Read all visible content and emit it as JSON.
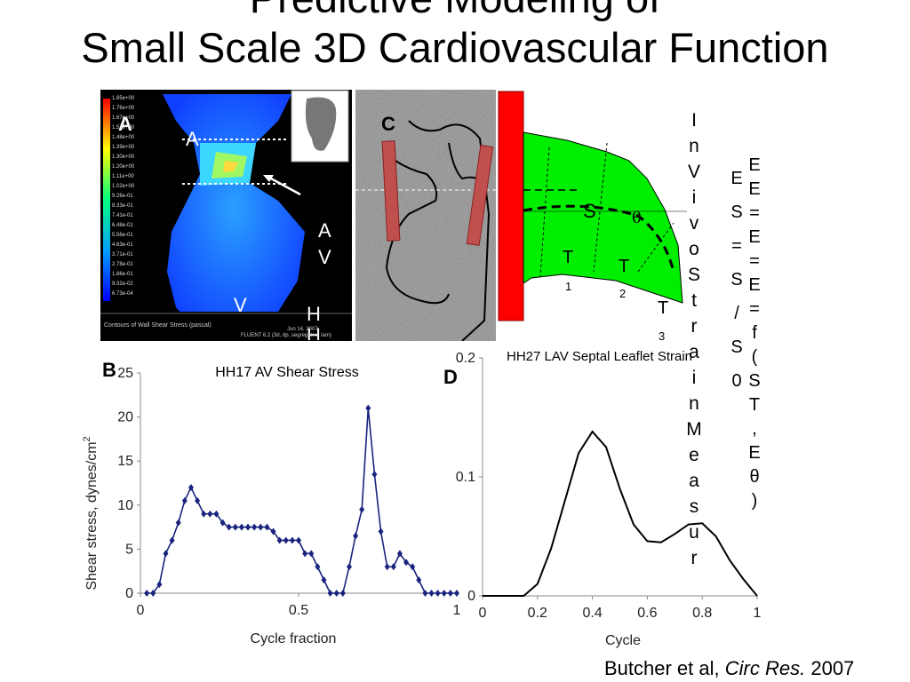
{
  "title": {
    "line1": "Predictive Modeling of",
    "line2": "Small Scale 3D Cardiovascular Function"
  },
  "panels": {
    "A": {
      "label": "A",
      "region_labels": [
        "A",
        "A",
        "V",
        "V",
        "H",
        "H"
      ],
      "colorbar_values": [
        "1.85e+00",
        "1.76e+00",
        "1.67e+00",
        "1.57e+00",
        "1.48e+00",
        "1.39e+00",
        "1.30e+00",
        "1.20e+00",
        "1.11e+00",
        "1.02e+00",
        "9.26e-01",
        "8.33e-01",
        "7.41e-01",
        "6.48e-01",
        "5.56e-01",
        "4.63e-01",
        "3.71e-01",
        "2.78e-01",
        "1.86e-01",
        "9.32e-02",
        "6.73e-04"
      ],
      "footer_left": "Contours of Wall Shear Stress (pascal)",
      "footer_right_date": "Jun 14, 2007",
      "footer_right_solver": "FLUENT 6.2 (3d, dp, segregated, lam)"
    },
    "C": {
      "label": "C",
      "symbols": {
        "S": "S",
        "theta": "θ",
        "T1": "T",
        "T1_sub": "1",
        "T2": "T",
        "T2_sub": "2",
        "T3": "T",
        "T3_sub": "3"
      }
    },
    "in_vivo_text": "In Vivo Strain Measur",
    "equations": {
      "col1": [
        "E",
        "S",
        "=",
        "S",
        "/",
        "S",
        "0"
      ],
      "col2": [
        "E",
        "E",
        "=",
        "E",
        "=",
        "E",
        "=",
        "f",
        "(",
        "S",
        "T",
        ",",
        "E",
        "θ",
        ")"
      ]
    }
  },
  "chart_data": [
    {
      "type": "line",
      "panel_label": "B",
      "title": "HH17 AV Shear Stress",
      "xlabel": "Cycle fraction",
      "ylabel": "Shear stress, dynes/cm",
      "ylabel_superscript": "2",
      "xlim": [
        0,
        1
      ],
      "ylim": [
        0,
        25
      ],
      "xticks": [
        "0",
        "0.5",
        "1"
      ],
      "yticks": [
        "0",
        "5",
        "10",
        "15",
        "20",
        "25"
      ],
      "color": "#1a237e",
      "x": [
        0.02,
        0.04,
        0.06,
        0.08,
        0.1,
        0.12,
        0.14,
        0.16,
        0.18,
        0.2,
        0.22,
        0.24,
        0.26,
        0.28,
        0.3,
        0.32,
        0.34,
        0.36,
        0.38,
        0.4,
        0.42,
        0.44,
        0.46,
        0.48,
        0.5,
        0.52,
        0.54,
        0.56,
        0.58,
        0.6,
        0.62,
        0.64,
        0.66,
        0.68,
        0.7,
        0.72,
        0.74,
        0.76,
        0.78,
        0.8,
        0.82,
        0.84,
        0.86,
        0.88,
        0.9,
        0.92,
        0.94,
        0.96,
        0.98,
        1.0
      ],
      "y": [
        0,
        0,
        1,
        4.5,
        6,
        8,
        10.5,
        12,
        10.5,
        9,
        9,
        9,
        8,
        7.5,
        7.5,
        7.5,
        7.5,
        7.5,
        7.5,
        7.5,
        7,
        6,
        6,
        6,
        6,
        4.5,
        4.5,
        3,
        1.5,
        0,
        0,
        0,
        3,
        6.5,
        9.5,
        21,
        13.5,
        7,
        3,
        3,
        4.5,
        3.5,
        3,
        1.5,
        0,
        0,
        0,
        0,
        0,
        0
      ]
    },
    {
      "type": "line",
      "panel_label": "D",
      "title": "HH27 LAV Septal Leaflet Strain",
      "xlabel": "Cycle",
      "ylabel": "",
      "xlim": [
        0,
        1
      ],
      "ylim": [
        0,
        0.2
      ],
      "xticks": [
        "0",
        "0.2",
        "0.4",
        "0.6",
        "0.8",
        "1"
      ],
      "yticks": [
        "0",
        "0.1",
        "0.2"
      ],
      "color": "#000000",
      "x": [
        0,
        0.1,
        0.15,
        0.2,
        0.25,
        0.3,
        0.35,
        0.4,
        0.45,
        0.5,
        0.55,
        0.6,
        0.65,
        0.7,
        0.75,
        0.8,
        0.85,
        0.9,
        0.95,
        1.0
      ],
      "y": [
        0,
        0,
        0,
        0.01,
        0.04,
        0.08,
        0.12,
        0.138,
        0.125,
        0.09,
        0.06,
        0.046,
        0.045,
        0.052,
        0.06,
        0.061,
        0.05,
        0.03,
        0.014,
        0
      ]
    }
  ],
  "citation": {
    "authors": "Butcher et al,",
    "journal": "Circ Res.",
    "year": "2007"
  }
}
